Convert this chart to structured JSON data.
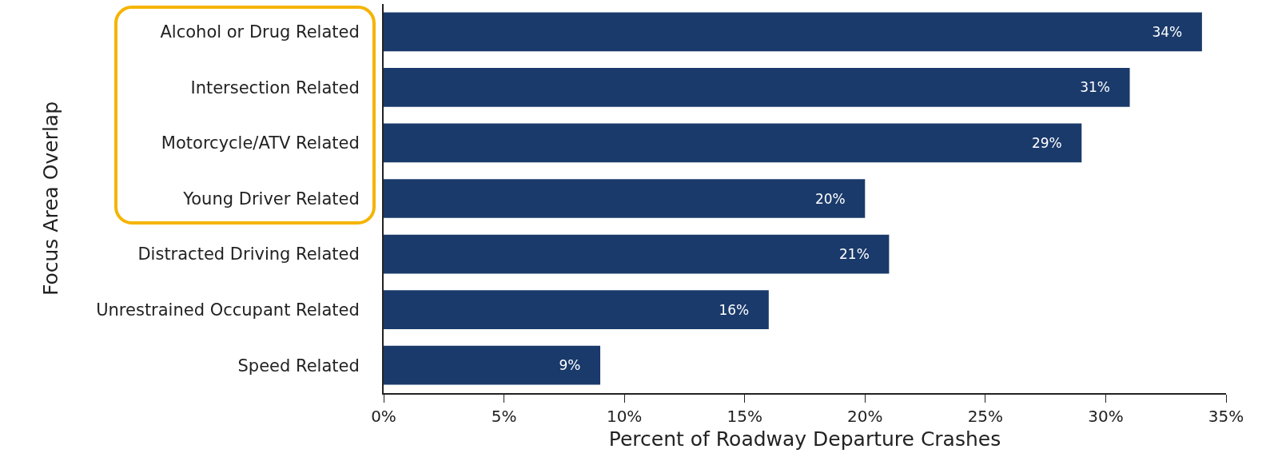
{
  "chart_data": {
    "type": "bar",
    "orientation": "horizontal",
    "xlabel": "Percent of Roadway Departure Crashes",
    "ylabel": "Focus Area Overlap",
    "categories": [
      "Alcohol or Drug Related",
      "Intersection Related",
      "Motorcycle/ATV Related",
      "Young Driver Related",
      "Distracted Driving Related",
      "Unrestrained Occupant Related",
      "Speed Related"
    ],
    "values": [
      34,
      31,
      29,
      20,
      21,
      16,
      9
    ],
    "value_labels": [
      "34%",
      "31%",
      "29%",
      "20%",
      "21%",
      "16%",
      "9%"
    ],
    "color": "#1a3a6b",
    "xlim": [
      0,
      35
    ],
    "xticks": [
      {
        "value": 0,
        "label": "0%"
      },
      {
        "value": 5,
        "label": "5%"
      },
      {
        "value": 10,
        "label": "10%"
      },
      {
        "value": 15,
        "label": "15%"
      },
      {
        "value": 20,
        "label": "20%"
      },
      {
        "value": 25,
        "label": "25%"
      },
      {
        "value": 30,
        "label": "30%"
      },
      {
        "value": 35,
        "label": "35%"
      }
    ],
    "grid": false
  }
}
